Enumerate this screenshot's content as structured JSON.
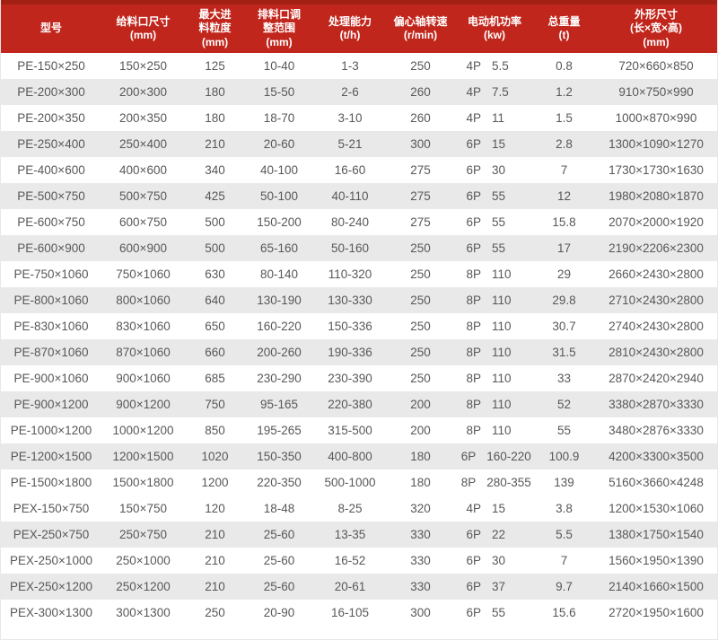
{
  "table": {
    "colors": {
      "accent": "#c1261c",
      "accent_dark": "#a32015",
      "stripe": "#e9e9e9",
      "text": "#58585a"
    },
    "columns": [
      {
        "key": "model",
        "label": "型号"
      },
      {
        "key": "feed_opening",
        "label": "给料口尺寸\n(mm)"
      },
      {
        "key": "max_feed",
        "label": "最大进\n料粒度\n(mm)"
      },
      {
        "key": "discharge_range",
        "label": "排料口调\n整范围\n(mm)"
      },
      {
        "key": "capacity",
        "label": "处理能力\n(t/h)"
      },
      {
        "key": "speed",
        "label": "偏心轴转速\n(r/min)"
      },
      {
        "key": "motor",
        "label": "电动机功率\n(kw)"
      },
      {
        "key": "weight",
        "label": "总重量\n(t)"
      },
      {
        "key": "dimensions",
        "label": "外形尺寸\n(长×宽×高)\n(mm)"
      }
    ],
    "rows": [
      {
        "model": "PE-150×250",
        "feed_opening": "150×250",
        "max_feed": "125",
        "discharge_range": "10-40",
        "capacity": "1-3",
        "speed": "250",
        "motor_pole": "4P",
        "motor_kw": "5.5",
        "weight": "0.8",
        "dimensions": "720×660×850"
      },
      {
        "model": "PE-200×300",
        "feed_opening": "200×300",
        "max_feed": "180",
        "discharge_range": "15-50",
        "capacity": "2-6",
        "speed": "260",
        "motor_pole": "4P",
        "motor_kw": "7.5",
        "weight": "1.2",
        "dimensions": "910×750×990"
      },
      {
        "model": "PE-200×350",
        "feed_opening": "200×350",
        "max_feed": "180",
        "discharge_range": "18-70",
        "capacity": "3-10",
        "speed": "260",
        "motor_pole": "4P",
        "motor_kw": "11",
        "weight": "1.5",
        "dimensions": "1000×870×990"
      },
      {
        "model": "PE-250×400",
        "feed_opening": "250×400",
        "max_feed": "210",
        "discharge_range": "20-60",
        "capacity": "5-21",
        "speed": "300",
        "motor_pole": "6P",
        "motor_kw": "15",
        "weight": "2.8",
        "dimensions": "1300×1090×1270"
      },
      {
        "model": "PE-400×600",
        "feed_opening": "400×600",
        "max_feed": "340",
        "discharge_range": "40-100",
        "capacity": "16-60",
        "speed": "275",
        "motor_pole": "6P",
        "motor_kw": "30",
        "weight": "7",
        "dimensions": "1730×1730×1630"
      },
      {
        "model": "PE-500×750",
        "feed_opening": "500×750",
        "max_feed": "425",
        "discharge_range": "50-100",
        "capacity": "40-110",
        "speed": "275",
        "motor_pole": "6P",
        "motor_kw": "55",
        "weight": "12",
        "dimensions": "1980×2080×1870"
      },
      {
        "model": "PE-600×750",
        "feed_opening": "600×750",
        "max_feed": "500",
        "discharge_range": "150-200",
        "capacity": "80-240",
        "speed": "275",
        "motor_pole": "6P",
        "motor_kw": "55",
        "weight": "15.8",
        "dimensions": "2070×2000×1920"
      },
      {
        "model": "PE-600×900",
        "feed_opening": "600×900",
        "max_feed": "500",
        "discharge_range": "65-160",
        "capacity": "50-160",
        "speed": "250",
        "motor_pole": "6P",
        "motor_kw": "55",
        "weight": "17",
        "dimensions": "2190×2206×2300"
      },
      {
        "model": "PE-750×1060",
        "feed_opening": "750×1060",
        "max_feed": "630",
        "discharge_range": "80-140",
        "capacity": "110-320",
        "speed": "250",
        "motor_pole": "8P",
        "motor_kw": "110",
        "weight": "29",
        "dimensions": "2660×2430×2800"
      },
      {
        "model": "PE-800×1060",
        "feed_opening": "800×1060",
        "max_feed": "640",
        "discharge_range": "130-190",
        "capacity": "130-330",
        "speed": "250",
        "motor_pole": "8P",
        "motor_kw": "110",
        "weight": "29.8",
        "dimensions": "2710×2430×2800"
      },
      {
        "model": "PE-830×1060",
        "feed_opening": "830×1060",
        "max_feed": "650",
        "discharge_range": "160-220",
        "capacity": "150-336",
        "speed": "250",
        "motor_pole": "8P",
        "motor_kw": "110",
        "weight": "30.7",
        "dimensions": "2740×2430×2800"
      },
      {
        "model": "PE-870×1060",
        "feed_opening": "870×1060",
        "max_feed": "660",
        "discharge_range": "200-260",
        "capacity": "190-336",
        "speed": "250",
        "motor_pole": "8P",
        "motor_kw": "110",
        "weight": "31.5",
        "dimensions": "2810×2430×2800"
      },
      {
        "model": "PE-900×1060",
        "feed_opening": "900×1060",
        "max_feed": "685",
        "discharge_range": "230-290",
        "capacity": "230-390",
        "speed": "250",
        "motor_pole": "8P",
        "motor_kw": "110",
        "weight": "33",
        "dimensions": "2870×2420×2940"
      },
      {
        "model": "PE-900×1200",
        "feed_opening": "900×1200",
        "max_feed": "750",
        "discharge_range": "95-165",
        "capacity": "220-380",
        "speed": "200",
        "motor_pole": "8P",
        "motor_kw": "110",
        "weight": "52",
        "dimensions": "3380×2870×3330"
      },
      {
        "model": "PE-1000×1200",
        "feed_opening": "1000×1200",
        "max_feed": "850",
        "discharge_range": "195-265",
        "capacity": "315-500",
        "speed": "200",
        "motor_pole": "8P",
        "motor_kw": "110",
        "weight": "55",
        "dimensions": "3480×2876×3330"
      },
      {
        "model": "PE-1200×1500",
        "feed_opening": "1200×1500",
        "max_feed": "1020",
        "discharge_range": "150-350",
        "capacity": "400-800",
        "speed": "180",
        "motor_pole": "6P",
        "motor_kw": "160-220",
        "weight": "100.9",
        "dimensions": "4200×3300×3500"
      },
      {
        "model": "PE-1500×1800",
        "feed_opening": "1500×1800",
        "max_feed": "1200",
        "discharge_range": "220-350",
        "capacity": "500-1000",
        "speed": "180",
        "motor_pole": "8P",
        "motor_kw": "280-355",
        "weight": "139",
        "dimensions": "5160×3660×4248"
      },
      {
        "model": "PEX-150×750",
        "feed_opening": "150×750",
        "max_feed": "120",
        "discharge_range": "18-48",
        "capacity": "8-25",
        "speed": "320",
        "motor_pole": "4P",
        "motor_kw": "15",
        "weight": "3.8",
        "dimensions": "1200×1530×1060"
      },
      {
        "model": "PEX-250×750",
        "feed_opening": "250×750",
        "max_feed": "210",
        "discharge_range": "25-60",
        "capacity": "13-35",
        "speed": "330",
        "motor_pole": "6P",
        "motor_kw": "22",
        "weight": "5.5",
        "dimensions": "1380×1750×1540"
      },
      {
        "model": "PEX-250×1000",
        "feed_opening": "250×1000",
        "max_feed": "210",
        "discharge_range": "25-60",
        "capacity": "16-52",
        "speed": "330",
        "motor_pole": "6P",
        "motor_kw": "30",
        "weight": "7",
        "dimensions": "1560×1950×1390"
      },
      {
        "model": "PEX-250×1200",
        "feed_opening": "250×1200",
        "max_feed": "210",
        "discharge_range": "25-60",
        "capacity": "20-61",
        "speed": "330",
        "motor_pole": "6P",
        "motor_kw": "37",
        "weight": "9.7",
        "dimensions": "2140×1660×1500"
      },
      {
        "model": "PEX-300×1300",
        "feed_opening": "300×1300",
        "max_feed": "250",
        "discharge_range": "20-90",
        "capacity": "16-105",
        "speed": "300",
        "motor_pole": "6P",
        "motor_kw": "55",
        "weight": "15.6",
        "dimensions": "2720×1950×1600"
      }
    ]
  }
}
